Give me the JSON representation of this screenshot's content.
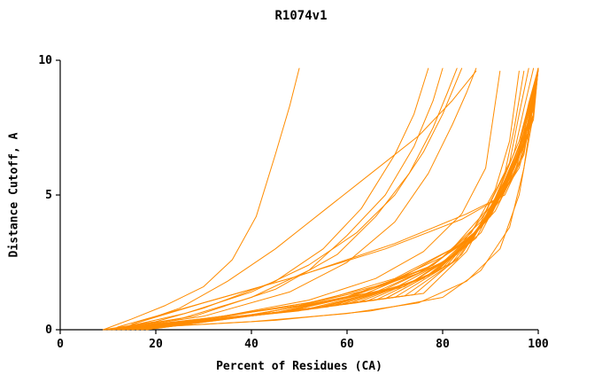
{
  "chart_data": {
    "type": "line",
    "title": "R1074v1",
    "xlabel": "Percent of Residues (CA)",
    "ylabel": "Distance Cutoff, A",
    "xlim": [
      0,
      100
    ],
    "ylim": [
      0,
      10
    ],
    "x_ticks": [
      0,
      20,
      40,
      60,
      80,
      100
    ],
    "y_ticks": [
      0,
      5,
      10
    ],
    "grid": false,
    "legend": "none",
    "line_color": "#ff8c00",
    "series": [
      [
        [
          9,
          0
        ],
        [
          15,
          0.4
        ],
        [
          22,
          0.9
        ],
        [
          30,
          1.6
        ],
        [
          36,
          2.6
        ],
        [
          41,
          4.2
        ],
        [
          45,
          6.5
        ],
        [
          48,
          8.3
        ],
        [
          50,
          9.7
        ]
      ],
      [
        [
          9,
          0
        ],
        [
          20,
          0.3
        ],
        [
          30,
          0.8
        ],
        [
          45,
          1.8
        ],
        [
          55,
          3.0
        ],
        [
          63,
          4.5
        ],
        [
          70,
          6.5
        ],
        [
          74,
          8.0
        ],
        [
          77,
          9.7
        ]
      ],
      [
        [
          10,
          0
        ],
        [
          25,
          0.4
        ],
        [
          40,
          1.2
        ],
        [
          52,
          2.2
        ],
        [
          60,
          3.5
        ],
        [
          68,
          5.0
        ],
        [
          74,
          6.8
        ],
        [
          78,
          8.5
        ],
        [
          80,
          9.7
        ]
      ],
      [
        [
          10,
          0
        ],
        [
          28,
          0.5
        ],
        [
          45,
          1.5
        ],
        [
          58,
          2.8
        ],
        [
          66,
          4.2
        ],
        [
          73,
          5.8
        ],
        [
          78,
          7.5
        ],
        [
          81,
          8.8
        ],
        [
          83,
          9.7
        ]
      ],
      [
        [
          11,
          0
        ],
        [
          30,
          0.5
        ],
        [
          48,
          1.4
        ],
        [
          60,
          2.5
        ],
        [
          70,
          4.0
        ],
        [
          77,
          5.8
        ],
        [
          82,
          7.6
        ],
        [
          85,
          8.8
        ],
        [
          87,
          9.7
        ]
      ],
      [
        [
          12,
          0
        ],
        [
          25,
          0.8
        ],
        [
          35,
          1.8
        ],
        [
          45,
          3.0
        ],
        [
          55,
          4.4
        ],
        [
          65,
          5.8
        ],
        [
          75,
          7.2
        ],
        [
          82,
          8.5
        ],
        [
          87,
          9.6
        ]
      ],
      [
        [
          11,
          0
        ],
        [
          26,
          0.6
        ],
        [
          40,
          1.4
        ],
        [
          52,
          2.4
        ],
        [
          62,
          3.6
        ],
        [
          70,
          5.0
        ],
        [
          76,
          6.6
        ],
        [
          80,
          8.0
        ],
        [
          84,
          9.7
        ]
      ],
      [
        [
          11,
          0
        ],
        [
          34,
          0.5
        ],
        [
          52,
          1.1
        ],
        [
          66,
          1.9
        ],
        [
          76,
          2.9
        ],
        [
          84,
          4.3
        ],
        [
          89,
          6.0
        ],
        [
          92,
          9.6
        ]
      ],
      [
        [
          9,
          0
        ],
        [
          30,
          0.4
        ],
        [
          50,
          0.9
        ],
        [
          65,
          1.5
        ],
        [
          78,
          2.4
        ],
        [
          86,
          3.6
        ],
        [
          91,
          5.2
        ],
        [
          94,
          7.0
        ],
        [
          96,
          9.6
        ]
      ],
      [
        [
          9,
          0
        ],
        [
          32,
          0.45
        ],
        [
          52,
          1.0
        ],
        [
          68,
          1.7
        ],
        [
          80,
          2.7
        ],
        [
          88,
          4.0
        ],
        [
          93,
          5.8
        ],
        [
          95,
          7.5
        ],
        [
          97,
          9.6
        ]
      ],
      [
        [
          10,
          0
        ],
        [
          35,
          0.5
        ],
        [
          55,
          1.1
        ],
        [
          70,
          1.9
        ],
        [
          82,
          3.0
        ],
        [
          89,
          4.4
        ],
        [
          94,
          6.2
        ],
        [
          96,
          8.0
        ],
        [
          98,
          9.7
        ]
      ],
      [
        [
          10,
          0
        ],
        [
          38,
          0.5
        ],
        [
          58,
          1.1
        ],
        [
          72,
          2.0
        ],
        [
          84,
          3.2
        ],
        [
          91,
          4.8
        ],
        [
          95,
          6.6
        ],
        [
          97,
          8.2
        ],
        [
          99,
          9.7
        ]
      ],
      [
        [
          10,
          0
        ],
        [
          40,
          0.55
        ],
        [
          60,
          1.2
        ],
        [
          75,
          2.1
        ],
        [
          86,
          3.4
        ],
        [
          92,
          5.0
        ],
        [
          96,
          6.8
        ],
        [
          98,
          8.4
        ],
        [
          100,
          9.7
        ]
      ],
      [
        [
          11,
          0
        ],
        [
          42,
          0.6
        ],
        [
          62,
          1.3
        ],
        [
          77,
          2.3
        ],
        [
          87,
          3.6
        ],
        [
          93,
          5.3
        ],
        [
          97,
          7.0
        ],
        [
          99,
          8.6
        ],
        [
          100,
          9.7
        ]
      ],
      [
        [
          11,
          0
        ],
        [
          44,
          0.6
        ],
        [
          64,
          1.35
        ],
        [
          78,
          2.4
        ],
        [
          88,
          3.8
        ],
        [
          94,
          5.5
        ],
        [
          97,
          7.3
        ],
        [
          99,
          8.8
        ],
        [
          100,
          9.7
        ]
      ],
      [
        [
          12,
          0
        ],
        [
          46,
          0.65
        ],
        [
          66,
          1.4
        ],
        [
          80,
          2.5
        ],
        [
          89,
          4.0
        ],
        [
          95,
          5.8
        ],
        [
          98,
          7.6
        ],
        [
          100,
          9.7
        ]
      ],
      [
        [
          12,
          0
        ],
        [
          48,
          0.7
        ],
        [
          68,
          1.5
        ],
        [
          81,
          2.6
        ],
        [
          90,
          4.2
        ],
        [
          95,
          6.0
        ],
        [
          98,
          7.8
        ],
        [
          100,
          9.7
        ]
      ],
      [
        [
          12,
          0
        ],
        [
          50,
          0.7
        ],
        [
          70,
          1.55
        ],
        [
          82,
          2.7
        ],
        [
          91,
          4.4
        ],
        [
          96,
          6.2
        ],
        [
          99,
          8.0
        ],
        [
          100,
          9.7
        ]
      ],
      [
        [
          13,
          0
        ],
        [
          52,
          0.75
        ],
        [
          72,
          1.6
        ],
        [
          83,
          2.8
        ],
        [
          91,
          4.6
        ],
        [
          96,
          6.4
        ],
        [
          99,
          8.2
        ],
        [
          100,
          9.7
        ]
      ],
      [
        [
          13,
          0
        ],
        [
          54,
          0.8
        ],
        [
          73,
          1.7
        ],
        [
          84,
          3.0
        ],
        [
          92,
          4.8
        ],
        [
          97,
          6.6
        ],
        [
          99,
          8.4
        ],
        [
          100,
          9.7
        ]
      ],
      [
        [
          13,
          0
        ],
        [
          56,
          0.85
        ],
        [
          74,
          1.8
        ],
        [
          85,
          3.1
        ],
        [
          92,
          5.0
        ],
        [
          97,
          6.8
        ],
        [
          100,
          9.7
        ]
      ],
      [
        [
          14,
          0
        ],
        [
          58,
          0.9
        ],
        [
          76,
          1.9
        ],
        [
          86,
          3.3
        ],
        [
          93,
          5.2
        ],
        [
          97,
          7.0
        ],
        [
          100,
          9.7
        ]
      ],
      [
        [
          14,
          0
        ],
        [
          60,
          0.95
        ],
        [
          77,
          2.0
        ],
        [
          87,
          3.4
        ],
        [
          93,
          5.4
        ],
        [
          98,
          7.2
        ],
        [
          100,
          9.7
        ]
      ],
      [
        [
          15,
          0
        ],
        [
          62,
          1.0
        ],
        [
          78,
          2.1
        ],
        [
          88,
          3.6
        ],
        [
          94,
          5.6
        ],
        [
          98,
          7.4
        ],
        [
          100,
          9.7
        ]
      ],
      [
        [
          15,
          0
        ],
        [
          64,
          1.05
        ],
        [
          79,
          2.2
        ],
        [
          88,
          3.8
        ],
        [
          94,
          5.8
        ],
        [
          98,
          7.6
        ],
        [
          100,
          9.7
        ]
      ],
      [
        [
          16,
          0
        ],
        [
          66,
          1.1
        ],
        [
          80,
          2.3
        ],
        [
          89,
          4.0
        ],
        [
          95,
          6.0
        ],
        [
          99,
          7.8
        ],
        [
          100,
          9.7
        ]
      ],
      [
        [
          16,
          0
        ],
        [
          68,
          1.15
        ],
        [
          81,
          2.4
        ],
        [
          89,
          4.1
        ],
        [
          95,
          6.2
        ],
        [
          99,
          8.0
        ],
        [
          100,
          9.7
        ]
      ],
      [
        [
          17,
          0
        ],
        [
          70,
          1.2
        ],
        [
          82,
          2.5
        ],
        [
          90,
          4.3
        ],
        [
          95,
          6.4
        ],
        [
          99,
          8.2
        ],
        [
          100,
          9.7
        ]
      ],
      [
        [
          17,
          0
        ],
        [
          72,
          1.25
        ],
        [
          83,
          2.6
        ],
        [
          90,
          4.5
        ],
        [
          96,
          6.6
        ],
        [
          100,
          9.7
        ]
      ],
      [
        [
          18,
          0
        ],
        [
          74,
          1.3
        ],
        [
          84,
          2.8
        ],
        [
          91,
          4.7
        ],
        [
          96,
          6.8
        ],
        [
          100,
          9.7
        ]
      ],
      [
        [
          18,
          0
        ],
        [
          76,
          1.35
        ],
        [
          85,
          2.9
        ],
        [
          91,
          4.9
        ],
        [
          96,
          7.0
        ],
        [
          100,
          9.7
        ]
      ],
      [
        [
          9,
          0
        ],
        [
          40,
          0.3
        ],
        [
          60,
          0.6
        ],
        [
          75,
          1.0
        ],
        [
          85,
          1.8
        ],
        [
          92,
          3.0
        ],
        [
          96,
          5.0
        ],
        [
          99,
          8.0
        ],
        [
          100,
          9.7
        ]
      ],
      [
        [
          10,
          0
        ],
        [
          45,
          0.35
        ],
        [
          65,
          0.7
        ],
        [
          80,
          1.2
        ],
        [
          88,
          2.2
        ],
        [
          94,
          3.8
        ],
        [
          97,
          6.0
        ],
        [
          100,
          9.7
        ]
      ],
      [
        [
          15,
          0.2
        ],
        [
          30,
          1.0
        ],
        [
          50,
          2.0
        ],
        [
          70,
          3.2
        ],
        [
          85,
          4.3
        ],
        [
          93,
          5.0
        ],
        [
          97,
          6.5
        ],
        [
          99,
          8.5
        ],
        [
          100,
          9.7
        ]
      ],
      [
        [
          12,
          0.1
        ],
        [
          28,
          0.9
        ],
        [
          48,
          1.9
        ],
        [
          68,
          3.0
        ],
        [
          84,
          4.1
        ],
        [
          92,
          4.9
        ],
        [
          96,
          6.0
        ],
        [
          99,
          8.0
        ],
        [
          100,
          9.7
        ]
      ]
    ]
  }
}
